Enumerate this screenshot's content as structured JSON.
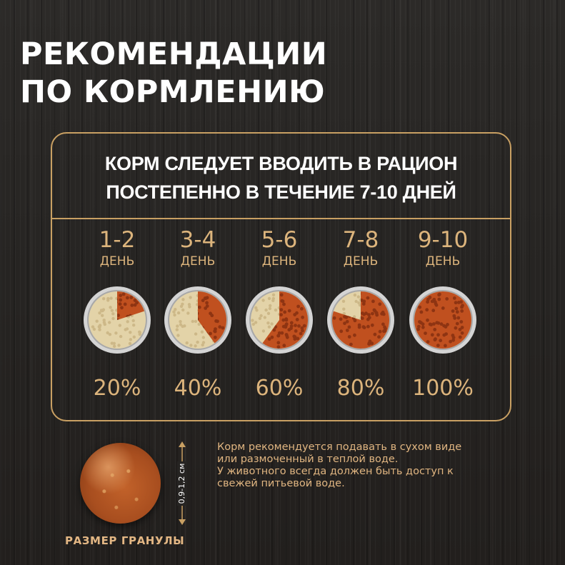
{
  "title": {
    "line1": "РЕКОМЕНДАЦИИ",
    "line2": "ПО КОРМЛЕНИЮ"
  },
  "intro": {
    "line1": "КОРМ СЛЕДУЕТ ВВОДИТЬ В РАЦИОН",
    "line2": "ПОСТЕПЕННО В ТЕЧЕНИЕ 7-10 ДНЕЙ"
  },
  "stages": [
    {
      "days": "1-2",
      "unit": "ДЕНЬ",
      "percent": "20%",
      "fraction": 0.2
    },
    {
      "days": "3-4",
      "unit": "ДЕНЬ",
      "percent": "40%",
      "fraction": 0.4
    },
    {
      "days": "5-6",
      "unit": "ДЕНЬ",
      "percent": "60%",
      "fraction": 0.6
    },
    {
      "days": "7-8",
      "unit": "ДЕНЬ",
      "percent": "80%",
      "fraction": 0.8
    },
    {
      "days": "9-10",
      "unit": "ДЕНЬ",
      "percent": "100%",
      "fraction": 1.0
    }
  ],
  "granule": {
    "size": "0,9-1,2 см",
    "label": "РАЗМЕР ГРАНУЛЫ"
  },
  "note": {
    "line1": "Корм рекомендуется подавать в сухом виде",
    "line2": "или размоченный в теплой воде.",
    "line3": "У животного всегда должен быть доступ к",
    "line4": "свежей питьевой воде."
  },
  "colors": {
    "accent": "#c9a063",
    "accent_text": "#dcb47c",
    "title_text": "#ffffff",
    "new_food": "#c0501f",
    "old_food": "#e3d3a8",
    "bowl_rim": "#d4d4d4"
  }
}
